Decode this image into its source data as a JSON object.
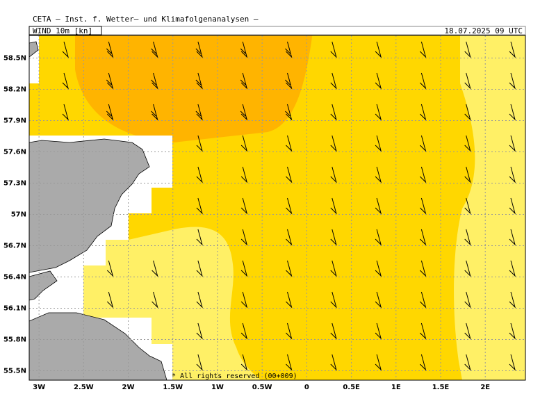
{
  "header": {
    "title": "CETA — Inst. f. Wetter— und Klimafolgenanalysen —",
    "field": "WIND 10m [kn]",
    "valid_time": "18.07.2025 09 UTC"
  },
  "map": {
    "lon_range": [
      -3.11,
      2.45
    ],
    "lat_range": [
      55.41,
      58.75
    ],
    "x_ticks": [
      {
        "value": -3,
        "label": "3W"
      },
      {
        "value": -2.5,
        "label": "2.5W"
      },
      {
        "value": -2,
        "label": "2W"
      },
      {
        "value": -1.5,
        "label": "1.5W"
      },
      {
        "value": -1,
        "label": "1W"
      },
      {
        "value": -0.5,
        "label": "0.5W"
      },
      0,
      {
        "value": 0.5,
        "label": "0.5E"
      },
      {
        "value": 1,
        "label": "1E"
      },
      {
        "value": 1.5,
        "label": "1.5E"
      },
      {
        "value": 2,
        "label": "2E"
      }
    ],
    "y_ticks": [
      {
        "value": 58.5,
        "label": "58.5N"
      },
      {
        "value": 58.2,
        "label": "58.2N"
      },
      {
        "value": 57.9,
        "label": "57.9N"
      },
      {
        "value": 57.6,
        "label": "57.6N"
      },
      {
        "value": 57.3,
        "label": "57.3N"
      },
      {
        "value": 57,
        "label": "57N"
      },
      {
        "value": 56.7,
        "label": "56.7N"
      },
      {
        "value": 56.4,
        "label": "56.4N"
      },
      {
        "value": 56.1,
        "label": "56.1N"
      },
      {
        "value": 55.8,
        "label": "55.8N"
      },
      {
        "value": 55.5,
        "label": "55.5N"
      }
    ],
    "footnote": "* All rights reserved (00+009)"
  }
}
